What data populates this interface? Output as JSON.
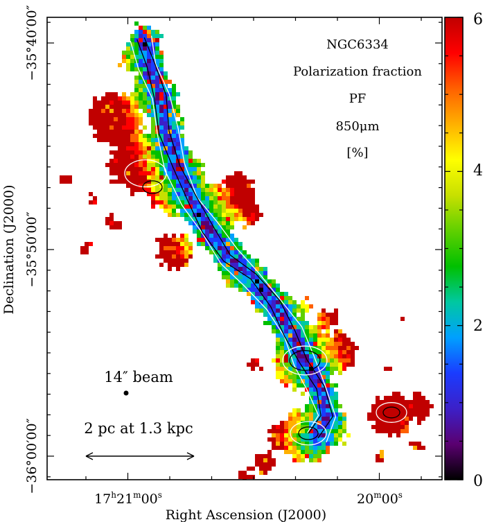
{
  "map": {
    "title_lines": [
      "NGC6334",
      "Polarization fraction",
      "PF",
      "850μm",
      "[%]"
    ],
    "x_axis_label": "Right Ascension (J2000)",
    "y_axis_label": "Declination (J2000)",
    "x_ticks": [
      {
        "label_main": "17",
        "sup_h": "h",
        "mid": "21",
        "sup_m": "m",
        "sec": "00",
        "sup_s": "s"
      },
      {
        "label_main": "",
        "sup_h": "",
        "mid": "20",
        "sup_m": "m",
        "sec": "00",
        "sup_s": "s"
      }
    ],
    "y_ticks": [
      "−35°40′00″",
      "−35°50′00″",
      "−36°00′00″"
    ],
    "colorbar": {
      "labels": [
        "6",
        "4",
        "2",
        "0"
      ],
      "min": 0,
      "max": 6,
      "colors": [
        "#000000",
        "#5a0070",
        "#3c20c8",
        "#1a3cff",
        "#00a0ff",
        "#00c8a0",
        "#00c000",
        "#60d000",
        "#c8e000",
        "#ffff00",
        "#ffb000",
        "#ff6000",
        "#ff0000",
        "#c00000"
      ]
    },
    "beam_label": "14″ beam",
    "scalebar_label": "2 pc at 1.3 kpc"
  }
}
